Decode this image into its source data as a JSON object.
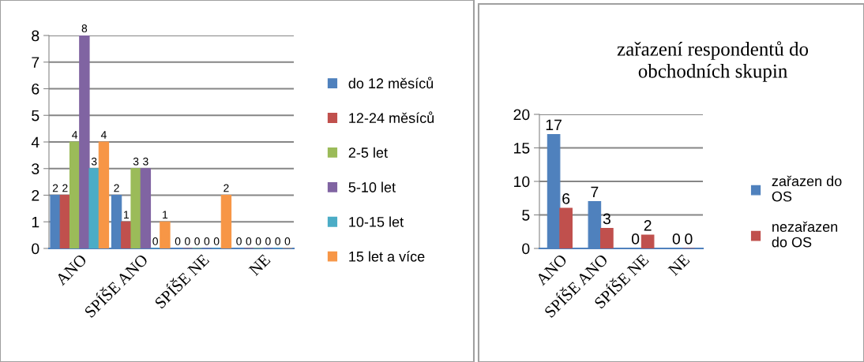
{
  "chart_data": [
    {
      "type": "bar",
      "categories": [
        "ANO",
        "SPÍŠE ANO",
        "SPÍŠE NE",
        "NE"
      ],
      "series": [
        {
          "name": "do 12 měsíců",
          "color": "#4f81bd",
          "values": [
            2,
            2,
            0,
            0
          ]
        },
        {
          "name": "12-24 měsíců",
          "color": "#c0504d",
          "values": [
            2,
            1,
            0,
            0
          ]
        },
        {
          "name": "2-5 let",
          "color": "#9bbb59",
          "values": [
            4,
            3,
            0,
            0
          ]
        },
        {
          "name": "5-10 let",
          "color": "#8064a2",
          "values": [
            8,
            3,
            0,
            0
          ]
        },
        {
          "name": "10-15 let",
          "color": "#4bacc6",
          "values": [
            3,
            0,
            0,
            0
          ]
        },
        {
          "name": "15 let a více",
          "color": "#f79646",
          "values": [
            4,
            1,
            2,
            0
          ]
        }
      ],
      "ylim": [
        0,
        8
      ],
      "yticks": [
        0,
        1,
        2,
        3,
        4,
        5,
        6,
        7,
        8
      ],
      "grid": "y",
      "legend": "right",
      "data_labels": true
    },
    {
      "type": "bar",
      "title": "zařazení respondentů do obchodních skupin",
      "categories": [
        "ANO",
        "SPÍŠE ANO",
        "SPÍŠE NE",
        "NE"
      ],
      "series": [
        {
          "name": "zařazen do OS",
          "color": "#4f81bd",
          "values": [
            17,
            7,
            0,
            0
          ]
        },
        {
          "name": "nezařazen do OS",
          "color": "#c0504d",
          "values": [
            6,
            3,
            2,
            0
          ]
        }
      ],
      "ylim": [
        0,
        20
      ],
      "yticks": [
        0,
        5,
        10,
        15,
        20
      ],
      "grid": "y",
      "legend": "right",
      "data_labels": true
    }
  ]
}
